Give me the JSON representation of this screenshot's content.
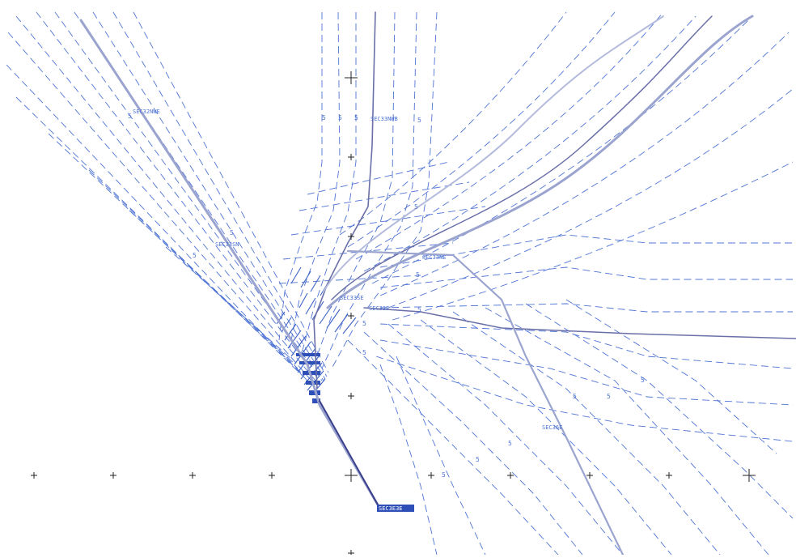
{
  "palette": {
    "background": "#ffffff",
    "offset_lines": "#4f74d4",
    "well_paths": "#3a3f8c",
    "well_paths_light": "#9aa4cf",
    "tick_marks": "#222222",
    "labels": "#4f74d4"
  },
  "icons": {
    "grid_tick": "cross-tick-icon"
  },
  "well_labels": [
    {
      "name": "sec-label-top-left",
      "text": "SEC32NWE"
    },
    {
      "name": "sec-label-top-center",
      "text": "SEC33NWB"
    },
    {
      "name": "sec-label-mid-left",
      "text": "SEC33SN"
    },
    {
      "name": "sec-label-center-right",
      "text": "SEC33NE"
    },
    {
      "name": "sec-label-center-a",
      "text": "SEC33SE"
    },
    {
      "name": "sec-label-center-b",
      "text": "SEC33E"
    },
    {
      "name": "sec-label-lower-right",
      "text": "SEC36E"
    },
    {
      "name": "sec-label-bottom",
      "text": "SEC3E3E"
    }
  ],
  "contour_marks": {
    "value": "5"
  }
}
